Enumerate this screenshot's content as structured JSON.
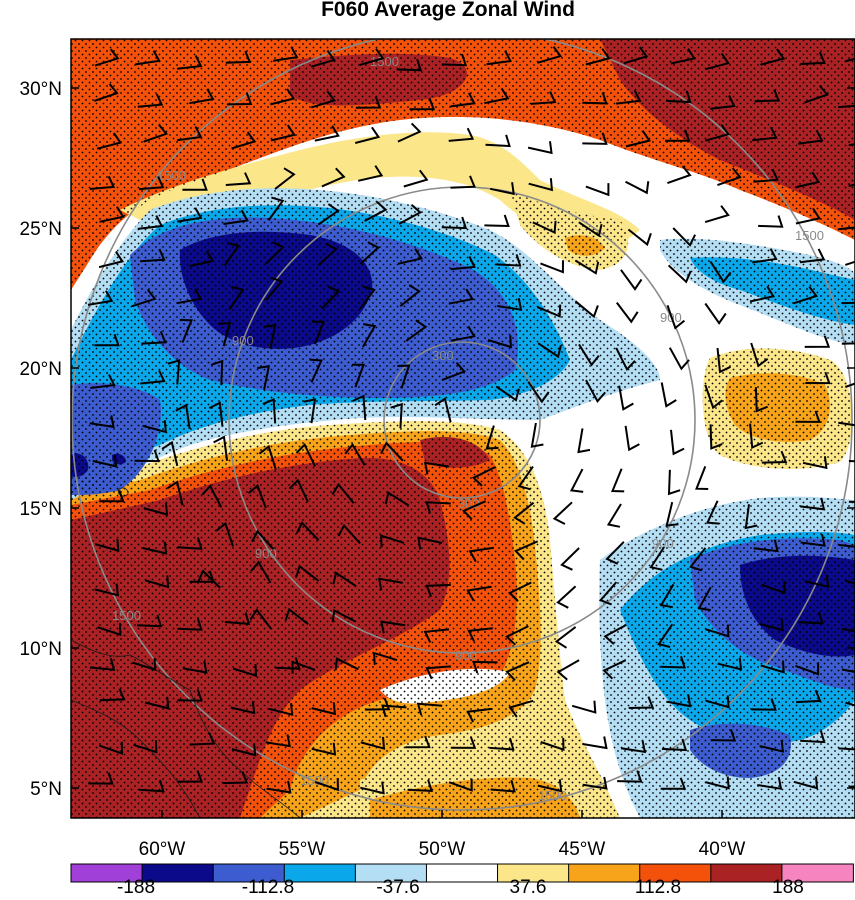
{
  "title": "F060 Average Zonal Wind",
  "lat_ticks": [
    "30°N",
    "25°N",
    "20°N",
    "15°N",
    "10°N",
    "5°N"
  ],
  "lon_ticks": [
    "60°W",
    "55°W",
    "50°W",
    "45°W",
    "40°W"
  ],
  "colorbar": {
    "labels": [
      "-188",
      "-112.8",
      "-37.6",
      "37.6",
      "112.8",
      "188"
    ],
    "colors": [
      "#a040d8",
      "#0b0a8a",
      "#3c5ccf",
      "#0aa8ea",
      "#b4def4",
      "#ffffff",
      "#fbe68a",
      "#f8a41b",
      "#f4520a",
      "#ab2225",
      "#f584bf"
    ]
  },
  "range_ring_labels": [
    "300",
    "900",
    "1500"
  ],
  "map_elements": {
    "shading": "filled contours of average zonal wind",
    "overlays": [
      "wind barbs",
      "stippling",
      "gray range rings",
      "coastlines"
    ]
  }
}
